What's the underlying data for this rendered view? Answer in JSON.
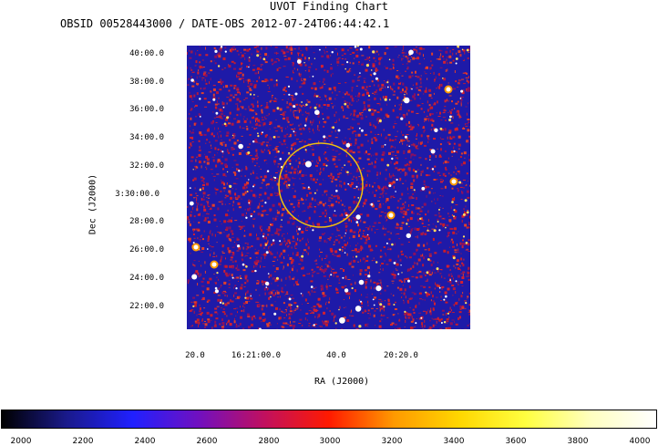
{
  "title": "UVOT Finding Chart",
  "subtitle": "OBSID 00528443000 / DATE-OBS 2012-07-24T06:44:42.1",
  "axes": {
    "ylabel": "Dec (J2000)",
    "xlabel": "RA (J2000)",
    "yticks": [
      "40:00.0",
      "38:00.0",
      "36:00.0",
      "34:00.0",
      "32:00.0",
      "3:30:00.0",
      "28:00.0",
      "26:00.0",
      "24:00.0",
      "22:00.0"
    ],
    "xticks": [
      "20.0",
      "16:21:00.0",
      "40.0",
      "20:20.0"
    ]
  },
  "colorbar": {
    "ticks": [
      "2000",
      "2200",
      "2400",
      "2600",
      "2800",
      "3000",
      "3200",
      "3400",
      "3600",
      "3800",
      "4000"
    ],
    "colors": [
      "#000000",
      "#1a1a8c",
      "#2020ff",
      "#7010c0",
      "#c01060",
      "#ff1a00",
      "#ff9a00",
      "#ffd700",
      "#ffff40",
      "#ffffc0",
      "#ffffff"
    ]
  },
  "image": {
    "background_color": "#1e1aa8",
    "noise_color": "#c81c2a",
    "source_circle_color": "#f0c010"
  }
}
